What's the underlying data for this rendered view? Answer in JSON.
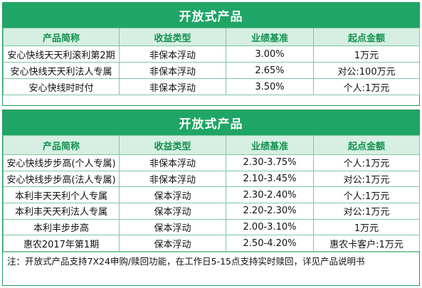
{
  "panel1": {
    "title": "开放式产品",
    "headers": [
      "产品简称",
      "收益类型",
      "业绩基准",
      "起点金额"
    ],
    "rows": [
      [
        "安心快线天天利滚利第2期",
        "非保本浮动",
        "3.00%",
        "1万元"
      ],
      [
        "安心快线天天利法人专属",
        "非保本浮动",
        "2.65%",
        "对公:100万元"
      ],
      [
        "安心快线时时付",
        "非保本浮动",
        "3.50%",
        "个人:1万元"
      ]
    ]
  },
  "panel2": {
    "title": "开放式产品",
    "headers": [
      "产品简称",
      "收益类型",
      "业绩基准",
      "起点金额"
    ],
    "rows": [
      [
        "安心快线步步高(个人专属)",
        "非保本浮动",
        "2.30-3.75%",
        "个人:1万元"
      ],
      [
        "安心快线步步高(法人专属)",
        "非保本浮动",
        "2.10-3.45%",
        "对公:1万元"
      ],
      [
        "本利丰天天利个人专属",
        "保本浮动",
        "2.30-2.40%",
        "个人:1万元"
      ],
      [
        "本利丰天天利法人专属",
        "保本浮动",
        "2.20-2.30%",
        "对公:1万元"
      ],
      [
        "本利丰步步高",
        "保本浮动",
        "2.00-3.10%",
        "1万元"
      ],
      [
        "惠农2017年第1期",
        "保本浮动",
        "2.50-4.20%",
        "惠农卡客户:1万元"
      ]
    ],
    "note": "注：开放式产品支持7X24申购/赎回功能，在工作日5-15点支持实时赎回，详见产品说明书"
  },
  "colors": {
    "banner": "#1fa565",
    "header_bg": "#d6efe2",
    "header_text": "#12914f",
    "grid": "#7fc6a2"
  }
}
